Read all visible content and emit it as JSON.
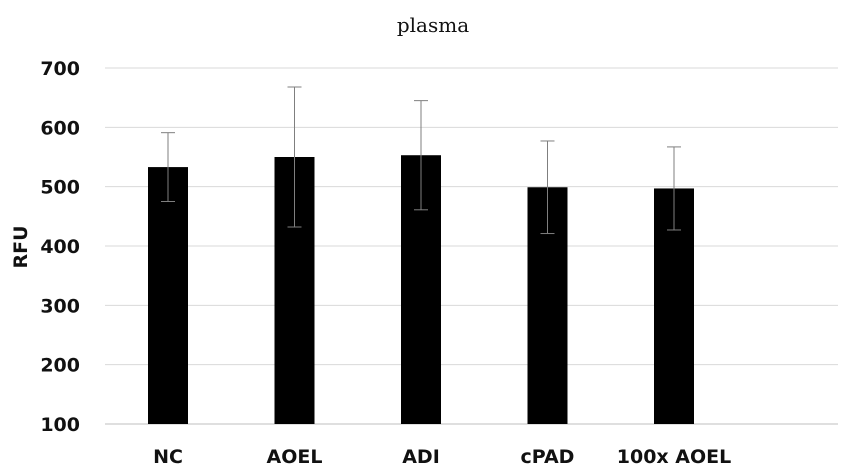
{
  "chart_data": {
    "type": "bar",
    "title": "plasma",
    "xlabel": "",
    "ylabel": "RFU",
    "categories": [
      "NC",
      "AOEL",
      "ADI",
      "cPAD",
      "100x AOEL"
    ],
    "values": [
      533,
      550,
      553,
      499,
      497
    ],
    "error": [
      58,
      118,
      92,
      78,
      70
    ],
    "ylim": [
      100,
      700
    ],
    "yticks": [
      100,
      200,
      300,
      400,
      500,
      600,
      700
    ],
    "bar_color": "#000000",
    "grid": true,
    "legend": "none"
  }
}
